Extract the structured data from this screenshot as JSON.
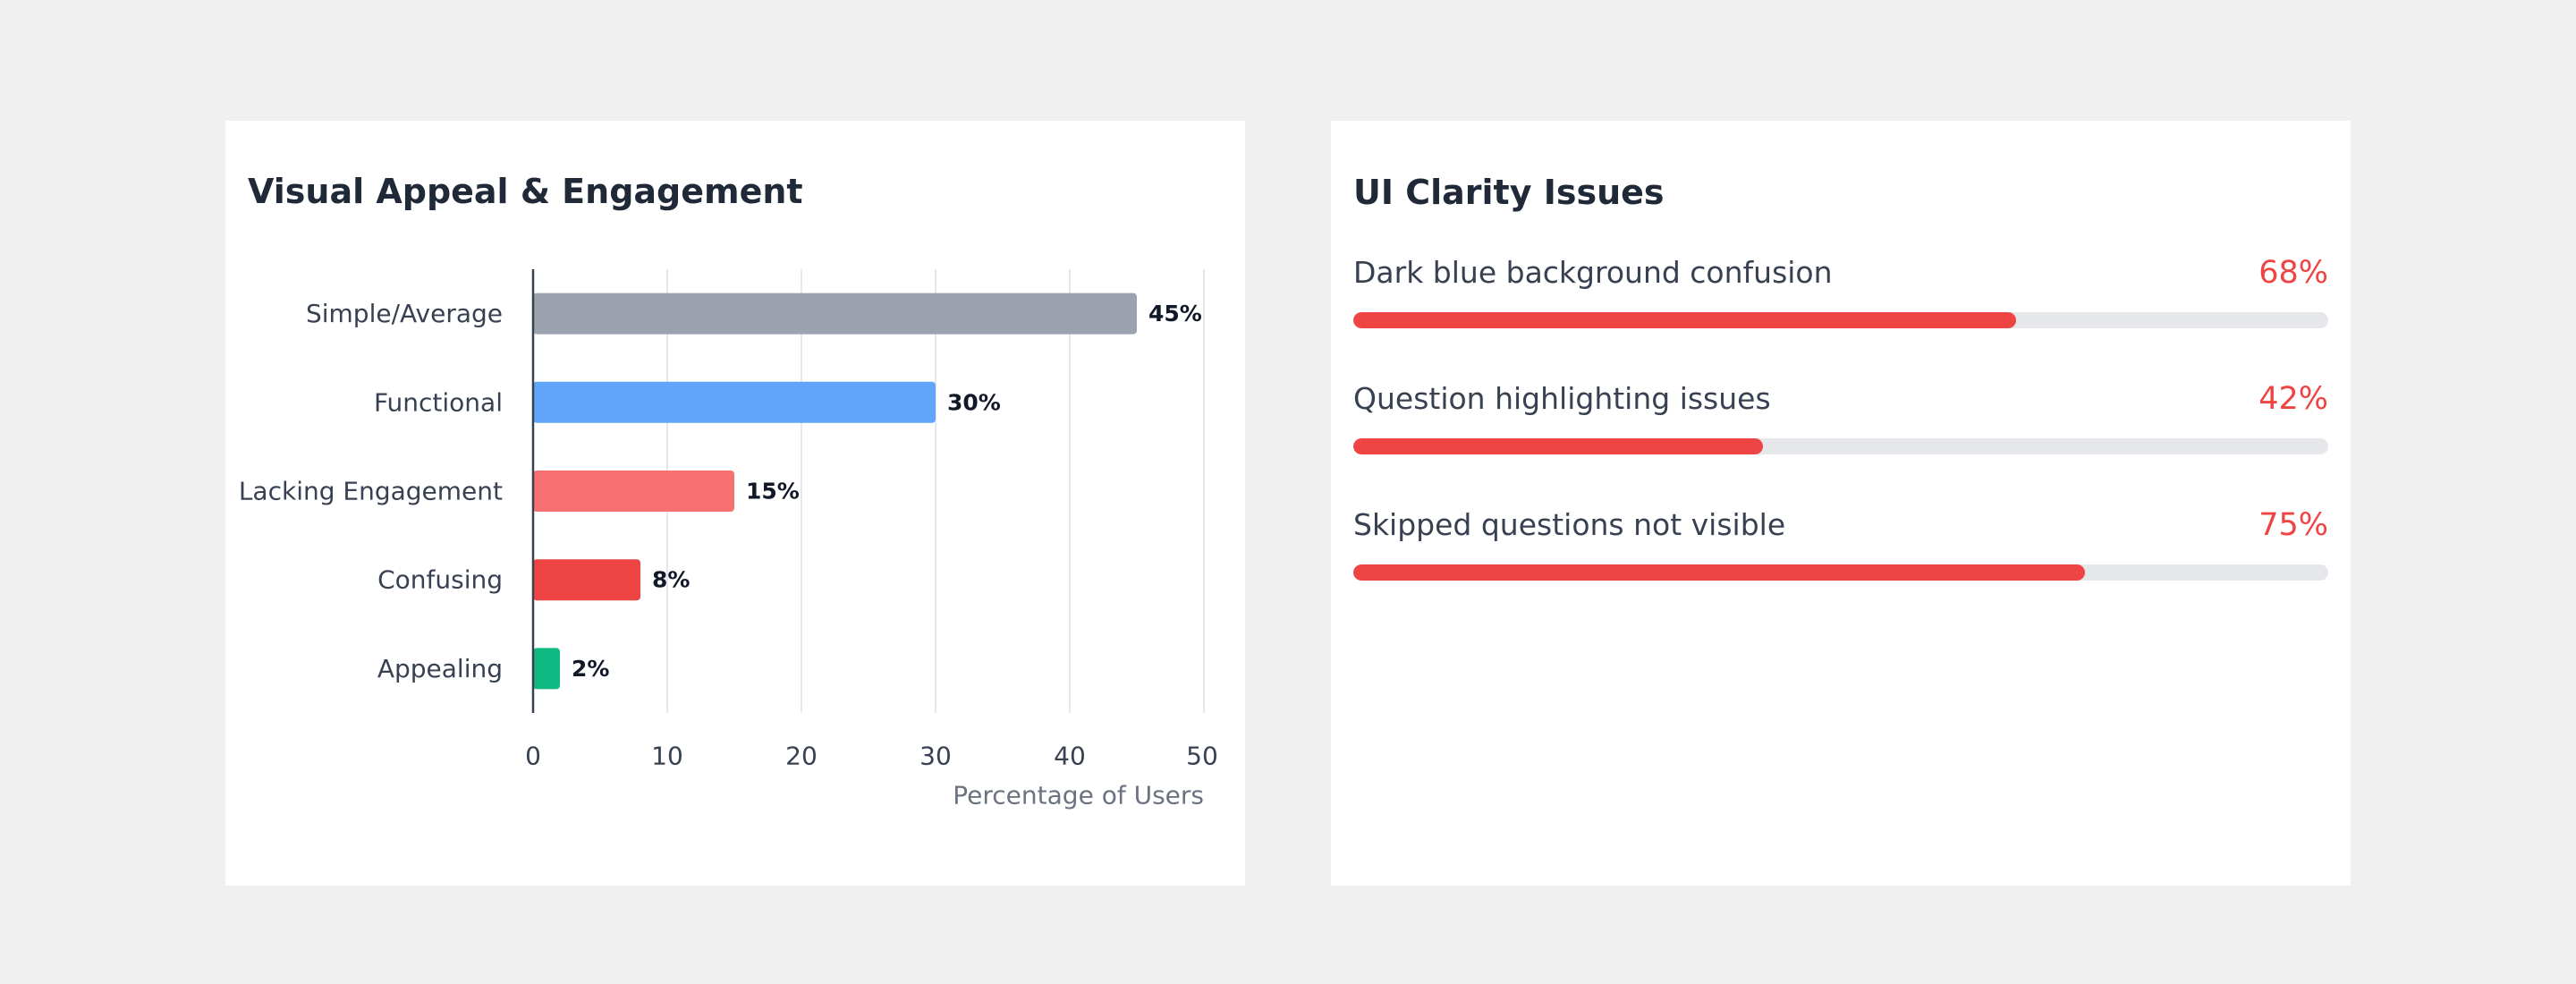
{
  "chart_data": {
    "type": "bar",
    "orientation": "horizontal",
    "title": "Visual Appeal & Engagement",
    "xlabel": "Percentage of Users",
    "ylabel": "",
    "categories": [
      "Simple/Average",
      "Functional",
      "Lacking Engagement",
      "Confusing",
      "Appealing"
    ],
    "values": [
      45,
      30,
      15,
      8,
      2
    ],
    "value_labels": [
      "45%",
      "30%",
      "15%",
      "8%",
      "2%"
    ],
    "colors": [
      "#9ca3af",
      "#60a5fa",
      "#f87171",
      "#ef4444",
      "#10b981"
    ],
    "xlim": [
      0,
      50
    ],
    "ticks": [
      0,
      10,
      20,
      30,
      40,
      50
    ],
    "tick_labels": [
      "0",
      "10",
      "20",
      "30",
      "40",
      "50"
    ],
    "grid": true
  },
  "clarity": {
    "title": "UI Clarity Issues",
    "accent_color": "#ef4444",
    "track_color": "#e5e7eb",
    "items": [
      {
        "label": "Dark blue background confusion",
        "percent_label": "68%",
        "value": 68
      },
      {
        "label": "Question highlighting issues",
        "percent_label": "42%",
        "value": 42
      },
      {
        "label": "Skipped questions not visible",
        "percent_label": "75%",
        "value": 75
      }
    ]
  }
}
